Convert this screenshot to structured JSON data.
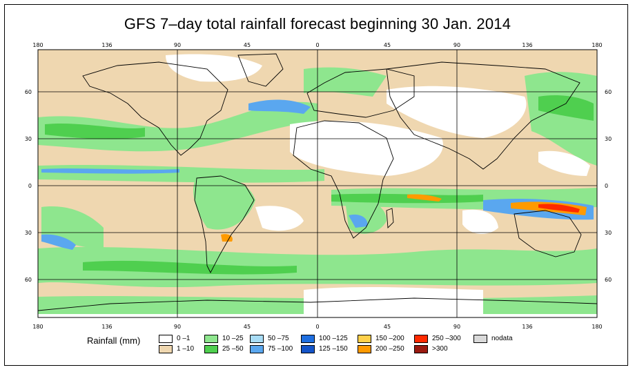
{
  "title": "GFS 7–day total rainfall forecast beginning 30 Jan. 2014",
  "map": {
    "lon_ticks": [
      "180",
      "136",
      "90",
      "45",
      "0",
      "45",
      "90",
      "136",
      "180"
    ],
    "lat_ticks": [
      "60",
      "30",
      "0",
      "30",
      "60"
    ]
  },
  "colors": {
    "ocean_dry": "#efd7b0",
    "green_light": "#8ee68e",
    "green_dark": "#4fcf4f",
    "blue_light": "#a8dcf5",
    "blue_mid": "#5aa7ef",
    "blue_dark": "#1f6fe0",
    "yellow": "#ffd04a",
    "orange": "#ff9a00",
    "red": "#ff2a00",
    "dark_red": "#9a1a10",
    "nodata": "#d9d9d9"
  },
  "legend": {
    "label": "Rainfall (mm)",
    "items": [
      {
        "label": "0 –1",
        "color": "#ffffff"
      },
      {
        "label": "1 –10",
        "color": "#efd7b0"
      },
      {
        "label": "10 –25",
        "color": "#8ee68e"
      },
      {
        "label": "25 –50",
        "color": "#4fcf4f"
      },
      {
        "label": "50 –75",
        "color": "#a8dcf5"
      },
      {
        "label": "75 –100",
        "color": "#5aa7ef"
      },
      {
        "label": "100 –125",
        "color": "#1f6fe0"
      },
      {
        "label": "125 –150",
        "color": "#1454c8"
      },
      {
        "label": "150 –200",
        "color": "#ffd04a"
      },
      {
        "label": "200 –250",
        "color": "#ff9a00"
      },
      {
        "label": "250 –300",
        "color": "#ff2a00"
      },
      {
        "label": ">300",
        "color": "#9a1a10"
      },
      {
        "label": "nodata",
        "color": "#d9d9d9"
      }
    ]
  }
}
